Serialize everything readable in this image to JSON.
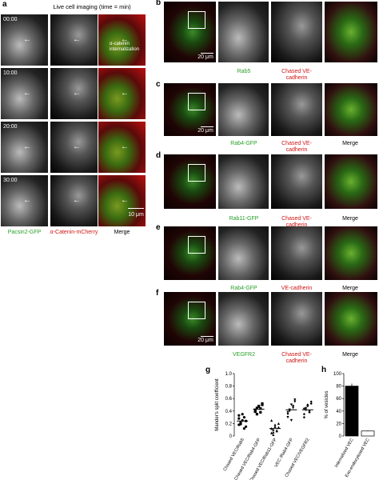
{
  "panel_a": {
    "label": "a",
    "title": "Live cell imaging (time = min)",
    "times": [
      "00:00",
      "10:00",
      "20:00",
      "30:00"
    ],
    "annotation": "α-catenin internalization",
    "channels": [
      "Pacsin2-GFP",
      "α-Catenin-mCherry",
      "Merge"
    ],
    "scale_bar": "10 μm"
  },
  "panels": [
    {
      "label": "b",
      "channels": [
        "Rab5",
        "Chased VE-cadherin"
      ],
      "scale_bar": "20 μm"
    },
    {
      "label": "c",
      "channels": [
        "Rab4-GFP",
        "Chased VE-cadherin",
        "Merge"
      ],
      "scale_bar": "20 μm"
    },
    {
      "label": "d",
      "channels": [
        "Rab11-GFP",
        "Chased VE-cadherin",
        "Merge"
      ]
    },
    {
      "label": "e",
      "channels": [
        "Rab4-GFP",
        "VE-cadherin",
        "Merge"
      ]
    },
    {
      "label": "f",
      "channels": [
        "VEGFR2",
        "Chased VE-cadherin",
        "Merge"
      ],
      "scale_bar": "20 μm"
    }
  ],
  "panel_g": {
    "label": "g",
    "type": "scatter",
    "y_label": "Mander's split coefficient",
    "categories": [
      "Chased VEC/Rab5",
      "Chased VEC/Rab4-GFP",
      "Chased VEC/Rab11-GFP",
      "VEC /Rab4-GFP",
      "Chased VEC/VEGFR2"
    ],
    "values": [
      [
        0.18,
        0.22,
        0.25,
        0.3,
        0.15,
        0.28,
        0.2,
        0.35,
        0.12,
        0.24,
        0.33,
        0.19
      ],
      [
        0.4,
        0.45,
        0.48,
        0.38,
        0.52,
        0.42,
        0.35,
        0.47,
        0.44,
        0.5,
        0.39
      ],
      [
        0.05,
        0.1,
        0.15,
        0.08,
        0.2,
        0.12,
        0.02,
        0.18,
        0.09,
        0.14,
        0.25,
        0.06
      ],
      [
        0.3,
        0.4,
        0.5,
        0.45,
        0.58,
        0.35,
        0.42,
        0.25,
        0.48,
        0.55,
        0.38
      ],
      [
        0.35,
        0.45,
        0.5,
        0.4,
        0.55,
        0.3,
        0.42,
        0.48,
        0.38,
        0.52,
        0.44
      ]
    ],
    "means": [
      0.24,
      0.43,
      0.12,
      0.42,
      0.42
    ],
    "ylim": [
      0,
      1
    ],
    "yticks": [
      0,
      0.2,
      0.4,
      0.6,
      0.8,
      {
        "value": 1,
        "label": "1.0"
      }
    ]
  },
  "panel_h": {
    "label": "h",
    "type": "bar",
    "y_label": "% of vesicles",
    "categories": [
      "Internalized VEC",
      "Exo-endocytosed VEC"
    ],
    "values": [
      80,
      8
    ],
    "errors": [
      4,
      1
    ],
    "colors": [
      "#000000",
      "#ffffff"
    ],
    "ylim": [
      0,
      100
    ],
    "yticks": [
      0,
      20,
      40,
      60,
      80,
      100
    ]
  }
}
